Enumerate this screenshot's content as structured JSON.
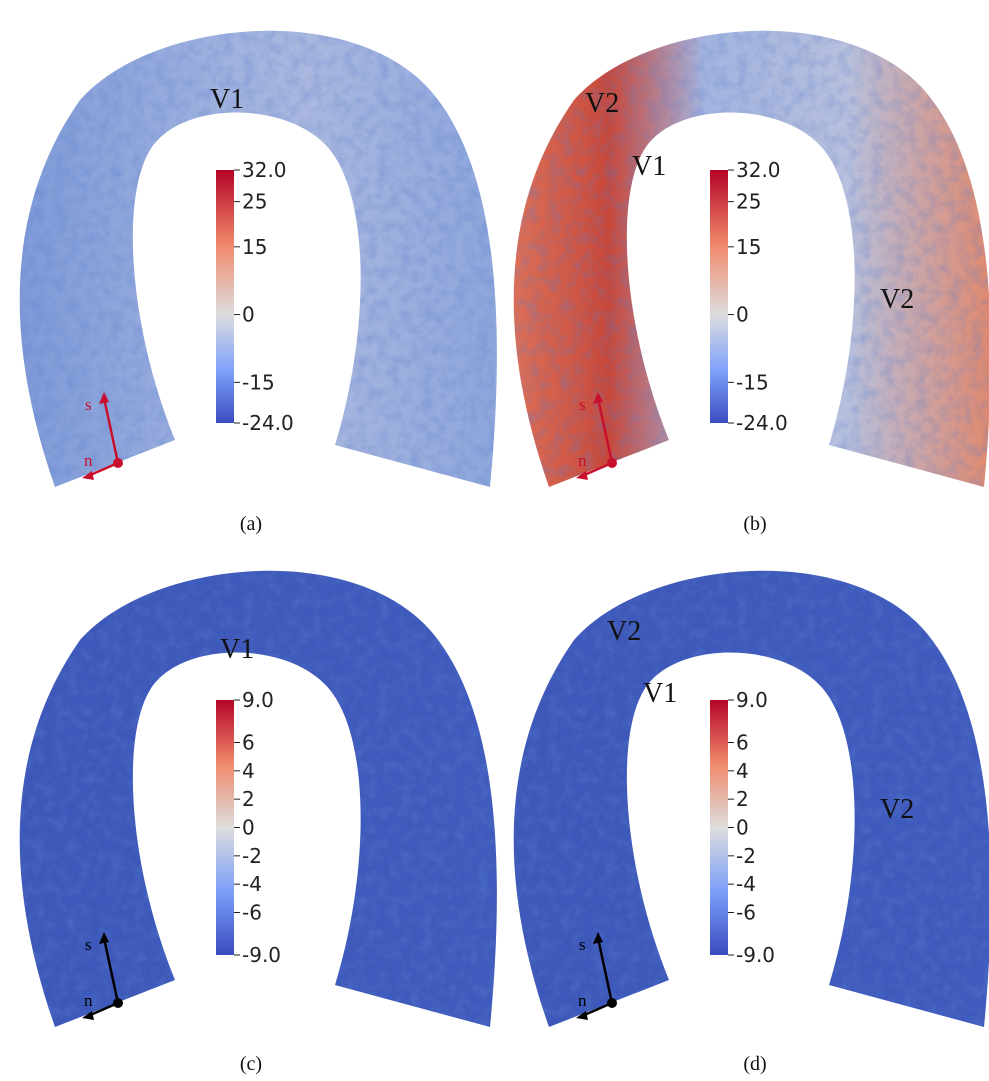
{
  "panels": [
    {
      "caption": "(a)",
      "labels": [
        "V1"
      ],
      "colorbar_ticks": [
        {
          "value": 32,
          "label": "32.0"
        },
        25,
        15,
        0,
        -15,
        {
          "value": -24,
          "label": "-24.0"
        }
      ],
      "axes": {
        "s": "s",
        "n": "n"
      }
    },
    {
      "caption": "(b)",
      "labels": [
        "V2",
        "V1",
        "V2"
      ],
      "colorbar_ticks": [
        {
          "value": 32,
          "label": "32.0"
        },
        25,
        15,
        0,
        -15,
        {
          "value": -24,
          "label": "-24.0"
        }
      ],
      "axes": {
        "s": "s",
        "n": "n"
      }
    },
    {
      "caption": "(c)",
      "labels": [
        "V1"
      ],
      "colorbar_ticks": [
        {
          "value": 9,
          "label": "9.0"
        },
        6,
        4,
        2,
        0,
        -2,
        -4,
        -6,
        {
          "value": -9,
          "label": "-9.0"
        }
      ],
      "axes": {
        "s": "s",
        "n": "n"
      }
    },
    {
      "caption": "(d)",
      "labels": [
        "V2",
        "V1",
        "V2"
      ],
      "colorbar_ticks": [
        {
          "value": 9,
          "label": "9.0"
        },
        6,
        4,
        2,
        0,
        -2,
        -4,
        -6,
        {
          "value": -9,
          "label": "-9.0"
        }
      ],
      "axes": {
        "s": "s",
        "n": "n"
      }
    }
  ]
}
